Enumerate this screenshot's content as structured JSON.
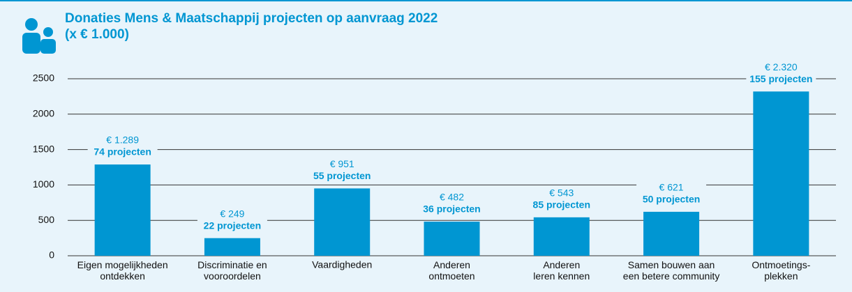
{
  "chart_data": {
    "type": "bar",
    "title": "Donaties Mens & Maatschappij projecten op aanvraag 2022",
    "subtitle": "(x € 1.000)",
    "categories": [
      "Eigen mogelijkheden\nontdekken",
      "Discriminatie en\nvooroordelen",
      "Vaardigheden",
      "Anderen\nontmoeten",
      "Anderen\nleren kennen",
      "Samen bouwen aan\neen betere community",
      "Ontmoetings-\nplekken"
    ],
    "values": [
      1289,
      249,
      951,
      482,
      543,
      621,
      2320
    ],
    "value_labels": [
      "€ 1.289",
      "€ 249",
      "€ 951",
      "€ 482",
      "€ 543",
      "€ 621",
      "€ 2.320"
    ],
    "project_labels": [
      "74 projecten",
      "22 projecten",
      "55 projecten",
      "36 projecten",
      "85 projecten",
      "50 projecten",
      "155 projecten"
    ],
    "color": "#0096d2",
    "ylim": [
      0,
      2500
    ],
    "yticks": [
      0,
      500,
      1000,
      1500,
      2000,
      2500
    ],
    "grid": true
  }
}
